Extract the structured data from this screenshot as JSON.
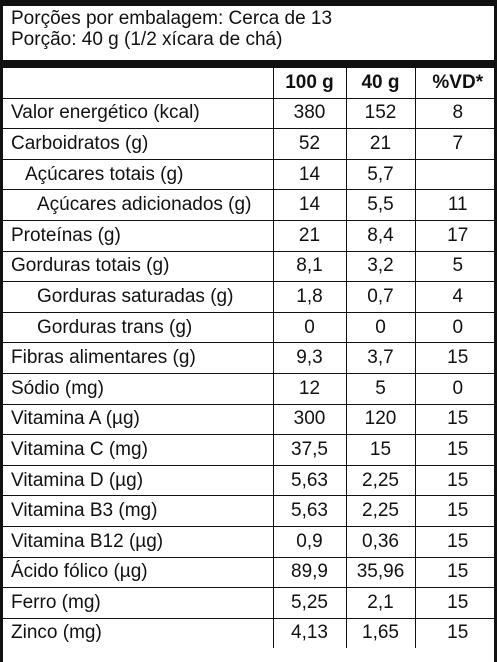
{
  "header": {
    "servings_per_package": "Porções por embalagem: Cerca de 13",
    "serving_size": "Porção: 40 g (1/2 xícara de chá)"
  },
  "table": {
    "columns": [
      "",
      "100 g",
      "40 g",
      "%VD*"
    ],
    "rows": [
      {
        "name": "Valor energético (kcal)",
        "per100": "380",
        "per40": "152",
        "vd": "8"
      },
      {
        "name": "Carboidratos (g)",
        "per100": "52",
        "per40": "21",
        "vd": "7"
      },
      {
        "name": "Açúcares totais (g)",
        "per100": "14",
        "per40": "5,7",
        "vd": ""
      },
      {
        "name": "Açúcares adicionados (g)",
        "per100": "14",
        "per40": "5,5",
        "vd": "11"
      },
      {
        "name": "Proteínas (g)",
        "per100": "21",
        "per40": "8,4",
        "vd": "17"
      },
      {
        "name": "Gorduras totais (g)",
        "per100": "8,1",
        "per40": "3,2",
        "vd": "5"
      },
      {
        "name": "Gorduras saturadas (g)",
        "per100": "1,8",
        "per40": "0,7",
        "vd": "4"
      },
      {
        "name": "Gorduras trans (g)",
        "per100": "0",
        "per40": "0",
        "vd": "0"
      },
      {
        "name": "Fibras alimentares (g)",
        "per100": "9,3",
        "per40": "3,7",
        "vd": "15"
      },
      {
        "name": "Sódio (mg)",
        "per100": "12",
        "per40": "5",
        "vd": "0"
      },
      {
        "name": "Vitamina A (µg)",
        "per100": "300",
        "per40": "120",
        "vd": "15"
      },
      {
        "name": "Vitamina C (mg)",
        "per100": "37,5",
        "per40": "15",
        "vd": "15"
      },
      {
        "name": "Vitamina D (µg)",
        "per100": "5,63",
        "per40": "2,25",
        "vd": "15"
      },
      {
        "name": "Vitamina B3 (mg)",
        "per100": "5,63",
        "per40": "2,25",
        "vd": "15"
      },
      {
        "name": "Vitamina B12 (µg)",
        "per100": "0,9",
        "per40": "0,36",
        "vd": "15"
      },
      {
        "name": "Ácido fólico (µg)",
        "per100": "89,9",
        "per40": "35,96",
        "vd": "15"
      },
      {
        "name": "Ferro (mg)",
        "per100": "5,25",
        "per40": "2,1",
        "vd": "15"
      },
      {
        "name": "Zinco (mg)",
        "per100": "4,13",
        "per40": "1,65",
        "vd": "15"
      }
    ]
  }
}
